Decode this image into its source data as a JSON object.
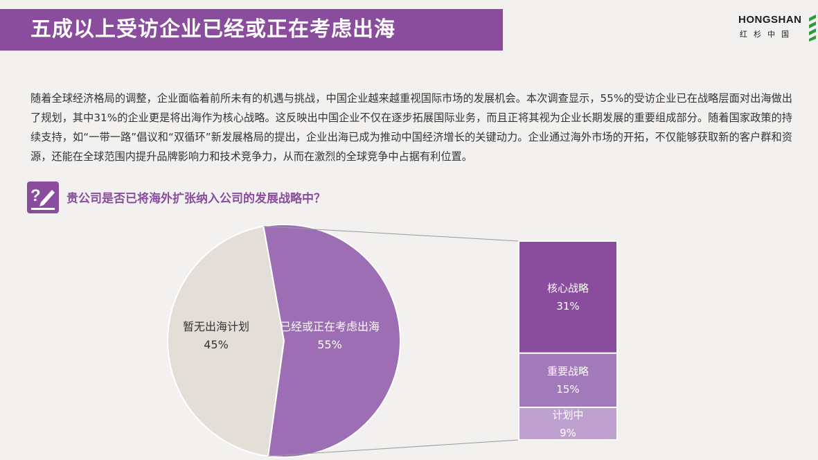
{
  "header": {
    "title": "五成以上受访企业已经或正在考虑出海",
    "logo_en": "HONGSHAN",
    "logo_cn": "红杉中国"
  },
  "intro_text": "随着全球经济格局的调整，企业面临着前所未有的机遇与挑战，中国企业越来越重视国际市场的发展机会。本次调查显示，55%的受访企业已在战略层面对出海做出了规划，其中31%的企业更是将出海作为核心战略。这反映出中国企业不仅在逐步拓展国际业务，而且正将其视为企业长期发展的重要组成部分。随着国家政策的持续支持，如“一带一路”倡议和“双循环”新发展格局的提出，企业出海已成为推动中国经济增长的关键动力。企业通过海外市场的开拓，不仅能够获取新的客户群和资源，还能在全球范围内提升品牌影响力和技术竞争力，从而在激烈的全球竞争中占据有利位置。",
  "question": "贵公司是否已将海外扩张纳入公司的发展战略中？",
  "colors": {
    "accent": "#8a4d9e",
    "pie_no": "#e3dfd8",
    "pie_yes": "#9d6eb3",
    "bar_core": "#8a4d9e",
    "bar_important": "#a27abb",
    "bar_planning": "#bfa1d0"
  },
  "chart_data": {
    "type": "bar-of-pie",
    "pie": [
      {
        "label": "暂无出海计划",
        "value": 45,
        "display": "45%"
      },
      {
        "label": "已经或正在考虑出海",
        "value": 55,
        "display": "55%"
      }
    ],
    "breakdown": [
      {
        "label": "核心战略",
        "value": 31,
        "display": "31%"
      },
      {
        "label": "重要战略",
        "value": 15,
        "display": "15%"
      },
      {
        "label": "计划中",
        "value": 9,
        "display": "9%"
      }
    ]
  }
}
